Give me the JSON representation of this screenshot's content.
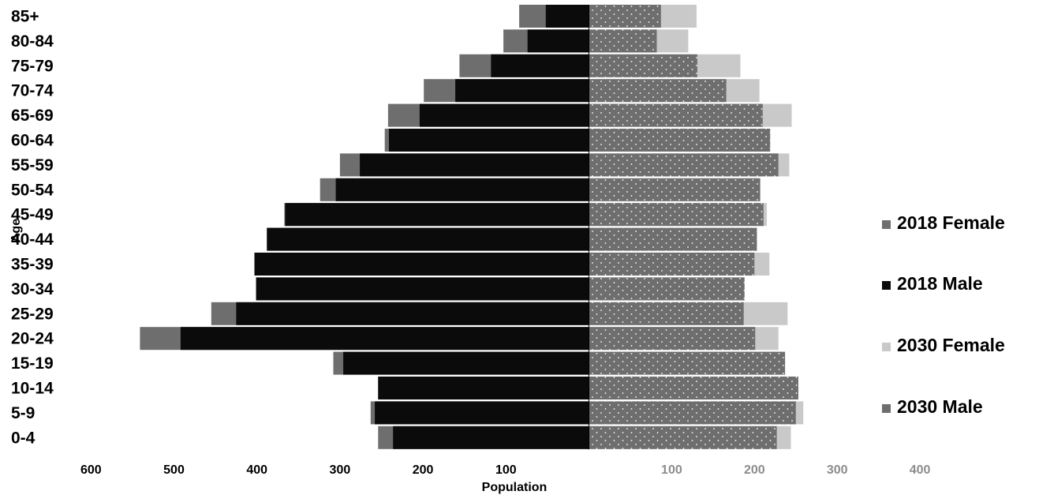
{
  "chart_data": {
    "type": "bar",
    "orientation": "horizontal",
    "layout": "population-pyramid",
    "categories": [
      "0-4",
      "5-9",
      "10-14",
      "15-19",
      "20-24",
      "25-29",
      "30-34",
      "35-39",
      "40-44",
      "45-49",
      "50-54",
      "55-59",
      "60-64",
      "65-69",
      "70-74",
      "75-79",
      "80-84",
      "85+"
    ],
    "series": [
      {
        "name": "2018 Female",
        "side": "right",
        "color": "#6e6e6e",
        "pattern": "dots",
        "values": [
          227,
          250,
          253,
          237,
          201,
          187,
          188,
          200,
          203,
          211,
          207,
          229,
          219,
          210,
          166,
          131,
          82,
          87
        ]
      },
      {
        "name": "2018 Male",
        "side": "left",
        "color": "#0b0b0b",
        "values": [
          236,
          258,
          254,
          296,
          492,
          425,
          401,
          403,
          388,
          366,
          305,
          276,
          241,
          204,
          161,
          118,
          74,
          52
        ]
      },
      {
        "name": "2030 Female",
        "side": "right",
        "color": "#c9c9c9",
        "values": [
          244,
          259,
          253,
          237,
          229,
          240,
          188,
          218,
          203,
          215,
          207,
          242,
          219,
          245,
          206,
          183,
          120,
          130
        ]
      },
      {
        "name": "2030 Male",
        "side": "left",
        "color": "#6e6e6e",
        "values": [
          254,
          263,
          254,
          308,
          541,
          455,
          401,
          403,
          388,
          367,
          324,
          300,
          246,
          242,
          199,
          156,
          103,
          84
        ]
      }
    ],
    "ylabel": "Age",
    "xlabel": "Population",
    "left_ticks": [
      "600",
      "500",
      "400",
      "300",
      "200",
      "100"
    ],
    "right_ticks": [
      "100",
      "200",
      "300",
      "400"
    ],
    "xlim_left": [
      0,
      600
    ],
    "xlim_right": [
      0,
      400
    ],
    "legend_position": "right",
    "grid": false
  }
}
